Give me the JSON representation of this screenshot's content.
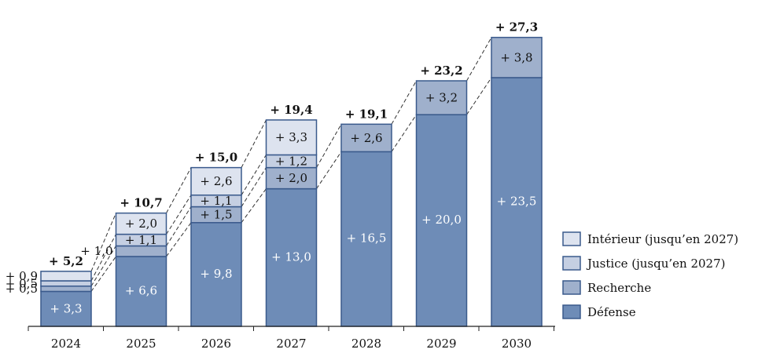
{
  "chart_data": {
    "type": "bar",
    "stacked": true,
    "title": "",
    "xlabel": "",
    "ylabel": "",
    "ylim": [
      0,
      29.5
    ],
    "grid": false,
    "legend_position": "right",
    "categories": [
      "2024",
      "2025",
      "2026",
      "2027",
      "2028",
      "2029",
      "2030"
    ],
    "series": [
      {
        "name": "Défense",
        "color": "#6e8cb7",
        "values": [
          3.3,
          6.6,
          9.8,
          13.0,
          16.5,
          20.0,
          23.5
        ],
        "labels": [
          "+ 3,3",
          "+ 6,6",
          "+ 9,8",
          "+ 13,0",
          "+ 16,5",
          "+ 20,0",
          "+ 23,5"
        ]
      },
      {
        "name": "Recherche",
        "color": "#9fb0cc",
        "values": [
          0.5,
          1.0,
          1.5,
          2.0,
          2.6,
          3.2,
          3.8
        ],
        "labels": [
          "+ 0,5",
          "+ 1,0",
          "+ 1,5",
          "+ 2,0",
          "+ 2,6",
          "+ 3,2",
          "+ 3,8"
        ]
      },
      {
        "name": "Justice (jusqu’en 2027)",
        "color": "#c5cfe2",
        "values": [
          0.5,
          1.1,
          1.1,
          1.2,
          null,
          null,
          null
        ],
        "labels": [
          "+ 0,5",
          "+ 1,1",
          "+ 1,1",
          "+ 1,2",
          "",
          "",
          ""
        ]
      },
      {
        "name": "Intérieur (jusqu’en 2027)",
        "color": "#dde3ef",
        "values": [
          0.9,
          2.0,
          2.6,
          3.3,
          null,
          null,
          null
        ],
        "labels": [
          "+ 0,9",
          "+ 2,0",
          "+ 2,6",
          "+ 3,3",
          "",
          "",
          ""
        ]
      }
    ],
    "totals": [
      5.2,
      10.7,
      15.0,
      19.4,
      19.1,
      23.2,
      27.3
    ],
    "total_labels": [
      "+ 5,2",
      "+ 10,7",
      "+ 15,0",
      "+ 19,4",
      "+ 19,1",
      "+ 23,2",
      "+ 27,3"
    ],
    "legend_order": [
      "Intérieur (jusqu’en 2027)",
      "Justice (jusqu’en 2027)",
      "Recherche",
      "Défense"
    ],
    "border_color": "#3a5a8c"
  }
}
